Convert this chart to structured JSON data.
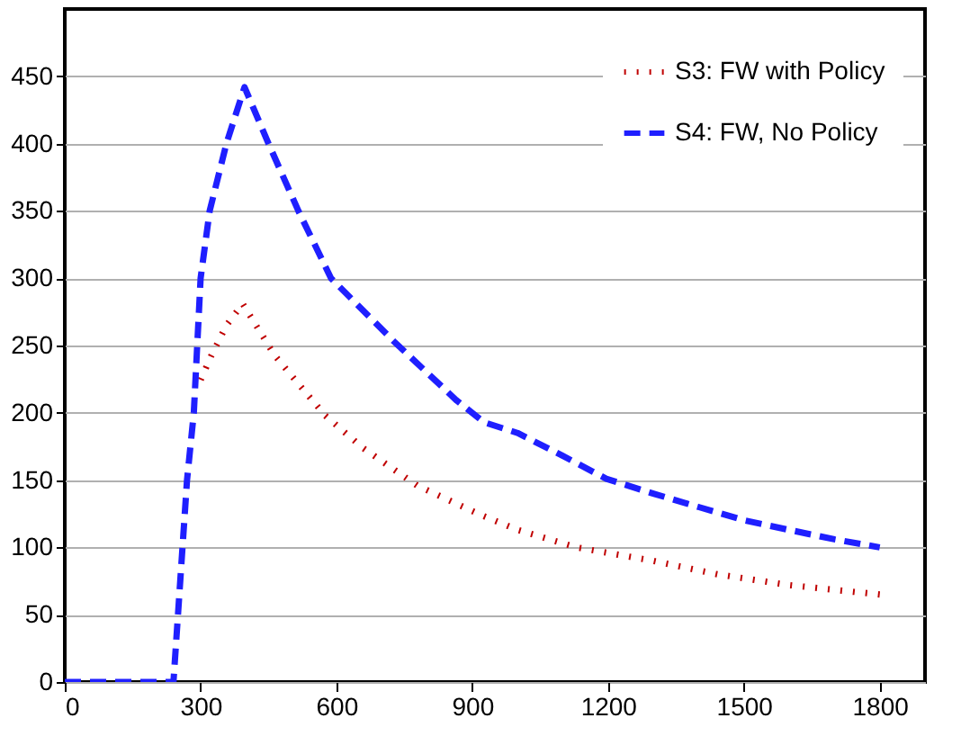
{
  "chart_data": {
    "type": "line",
    "xlim": [
      0,
      1900
    ],
    "xticks": [
      0,
      300,
      600,
      900,
      1200,
      1500,
      1800
    ],
    "ylim": [
      0,
      500
    ],
    "yticks": [
      0,
      50,
      100,
      150,
      200,
      250,
      300,
      350,
      400,
      450
    ],
    "grid": "y",
    "legend": "top right",
    "marker": "none",
    "series": [
      {
        "name": "S3: FW with Policy",
        "color": "#c00000",
        "line_style": "dotted",
        "x": [
          297,
          323,
          357,
          393,
          463,
          505,
          575,
          658,
          778,
          913,
          1000,
          1131,
          1300,
          1442,
          1600,
          1800
        ],
        "values": [
          222,
          242,
          265,
          281,
          243,
          226,
          198,
          174,
          146,
          125,
          113,
          100,
          90,
          80,
          72,
          65
        ]
      },
      {
        "name": "S4: FW, No Policy",
        "color": "#1f1fff",
        "line_style": "dashed",
        "x": [
          0,
          240,
          250,
          260,
          270,
          285,
          300,
          320,
          357,
          397,
          450,
          516,
          588,
          727,
          866,
          926,
          1000,
          1100,
          1196,
          1300,
          1400,
          1502,
          1600,
          1700,
          1800
        ],
        "values": [
          0,
          0,
          50,
          100,
          150,
          200,
          300,
          350,
          400,
          442,
          400,
          350,
          300,
          253,
          209,
          193,
          185,
          168,
          151,
          140,
          130,
          120,
          113,
          106,
          100
        ]
      }
    ]
  }
}
